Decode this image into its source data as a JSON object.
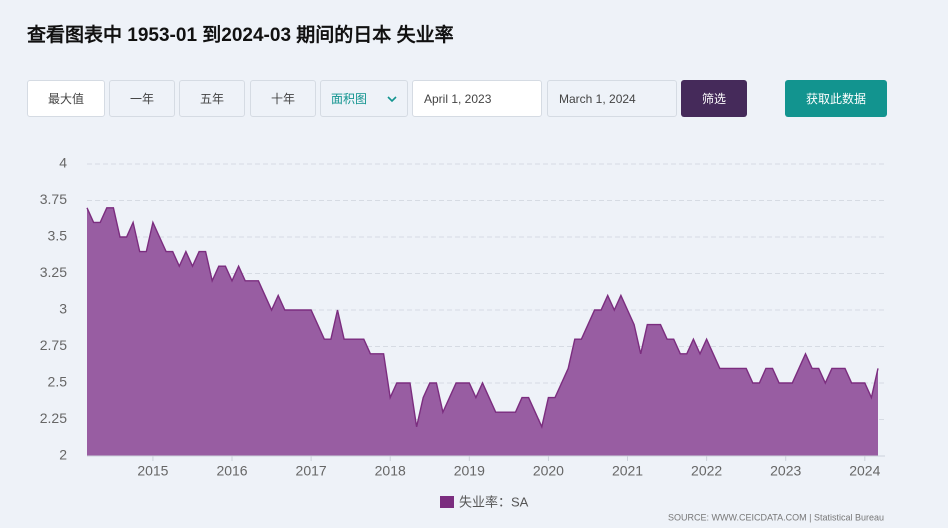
{
  "header": {
    "title": "查看图表中 1953-01 到2024-03 期间的日本 失业率"
  },
  "controls": {
    "buttons": [
      "最大值",
      "一年",
      "五年",
      "十年"
    ],
    "chart_type": "面积图",
    "start_date": "April 1, 2023",
    "end_date": "March 1, 2024",
    "filter": "筛选",
    "get_data": "获取此数据"
  },
  "chart_data": {
    "type": "area",
    "x": [
      "2014-03",
      "2014-04",
      "2014-05",
      "2014-06",
      "2014-07",
      "2014-08",
      "2014-09",
      "2014-10",
      "2014-11",
      "2014-12",
      "2015-01",
      "2015-02",
      "2015-03",
      "2015-04",
      "2015-05",
      "2015-06",
      "2015-07",
      "2015-08",
      "2015-09",
      "2015-10",
      "2015-11",
      "2015-12",
      "2016-01",
      "2016-02",
      "2016-03",
      "2016-04",
      "2016-05",
      "2016-06",
      "2016-07",
      "2016-08",
      "2016-09",
      "2016-10",
      "2016-11",
      "2016-12",
      "2017-01",
      "2017-02",
      "2017-03",
      "2017-04",
      "2017-05",
      "2017-06",
      "2017-07",
      "2017-08",
      "2017-09",
      "2017-10",
      "2017-11",
      "2017-12",
      "2018-01",
      "2018-02",
      "2018-03",
      "2018-04",
      "2018-05",
      "2018-06",
      "2018-07",
      "2018-08",
      "2018-09",
      "2018-10",
      "2018-11",
      "2018-12",
      "2019-01",
      "2019-02",
      "2019-03",
      "2019-04",
      "2019-05",
      "2019-06",
      "2019-07",
      "2019-08",
      "2019-09",
      "2019-10",
      "2019-11",
      "2019-12",
      "2020-01",
      "2020-02",
      "2020-03",
      "2020-04",
      "2020-05",
      "2020-06",
      "2020-07",
      "2020-08",
      "2020-09",
      "2020-10",
      "2020-11",
      "2020-12",
      "2021-01",
      "2021-02",
      "2021-03",
      "2021-04",
      "2021-05",
      "2021-06",
      "2021-07",
      "2021-08",
      "2021-09",
      "2021-10",
      "2021-11",
      "2021-12",
      "2022-01",
      "2022-02",
      "2022-03",
      "2022-04",
      "2022-05",
      "2022-06",
      "2022-07",
      "2022-08",
      "2022-09",
      "2022-10",
      "2022-11",
      "2022-12",
      "2023-01",
      "2023-02",
      "2023-03",
      "2023-04",
      "2023-05",
      "2023-06",
      "2023-07",
      "2023-08",
      "2023-09",
      "2023-10",
      "2023-11",
      "2023-12",
      "2024-01",
      "2024-02",
      "2024-03"
    ],
    "series": [
      {
        "name": "失业率：SA",
        "color": "#7b2d7f",
        "fill": "#985da2",
        "values": [
          3.7,
          3.6,
          3.6,
          3.7,
          3.7,
          3.5,
          3.5,
          3.6,
          3.4,
          3.4,
          3.6,
          3.5,
          3.4,
          3.4,
          3.3,
          3.4,
          3.3,
          3.4,
          3.4,
          3.2,
          3.3,
          3.3,
          3.2,
          3.3,
          3.2,
          3.2,
          3.2,
          3.1,
          3.0,
          3.1,
          3.0,
          3.0,
          3.0,
          3.0,
          3.0,
          2.9,
          2.8,
          2.8,
          3.0,
          2.8,
          2.8,
          2.8,
          2.8,
          2.7,
          2.7,
          2.7,
          2.4,
          2.5,
          2.5,
          2.5,
          2.2,
          2.4,
          2.5,
          2.5,
          2.3,
          2.4,
          2.5,
          2.5,
          2.5,
          2.4,
          2.5,
          2.4,
          2.3,
          2.3,
          2.3,
          2.3,
          2.4,
          2.4,
          2.3,
          2.2,
          2.4,
          2.4,
          2.5,
          2.6,
          2.8,
          2.8,
          2.9,
          3.0,
          3.0,
          3.1,
          3.0,
          3.1,
          3.0,
          2.9,
          2.7,
          2.9,
          2.9,
          2.9,
          2.8,
          2.8,
          2.7,
          2.7,
          2.8,
          2.7,
          2.8,
          2.7,
          2.6,
          2.6,
          2.6,
          2.6,
          2.6,
          2.5,
          2.5,
          2.6,
          2.6,
          2.5,
          2.5,
          2.5,
          2.6,
          2.7,
          2.6,
          2.6,
          2.5,
          2.6,
          2.6,
          2.6,
          2.5,
          2.5,
          2.5,
          2.4,
          2.6
        ]
      }
    ],
    "ylim": [
      2,
      4
    ],
    "yticks": [
      2,
      2.25,
      2.5,
      2.75,
      3,
      3.25,
      3.5,
      3.75,
      4
    ],
    "xticks": [
      2015,
      2016,
      2017,
      2018,
      2019,
      2020,
      2021,
      2022,
      2023,
      2024
    ],
    "grid": true
  },
  "source": "SOURCE: WWW.CEICDATA.COM | Statistical Bureau"
}
